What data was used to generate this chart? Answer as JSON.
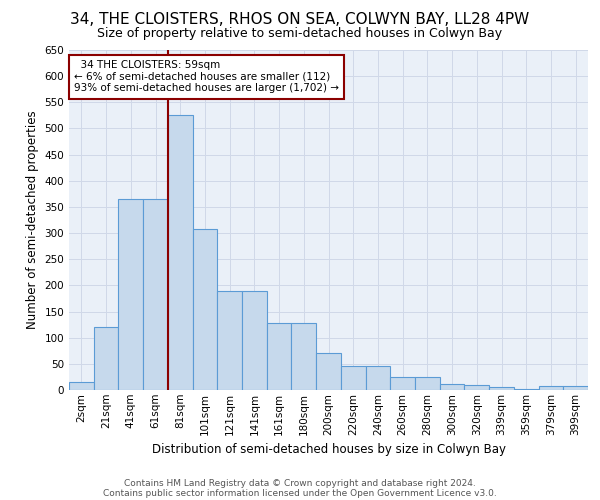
{
  "title": "34, THE CLOISTERS, RHOS ON SEA, COLWYN BAY, LL28 4PW",
  "subtitle": "Size of property relative to semi-detached houses in Colwyn Bay",
  "xlabel": "Distribution of semi-detached houses by size in Colwyn Bay",
  "ylabel": "Number of semi-detached properties",
  "footer_line1": "Contains HM Land Registry data © Crown copyright and database right 2024.",
  "footer_line2": "Contains public sector information licensed under the Open Government Licence v3.0.",
  "annotation_line1": "34 THE CLOISTERS: 59sqm",
  "annotation_line2": "← 6% of semi-detached houses are smaller (112)",
  "annotation_line3": "93% of semi-detached houses are larger (1,702) →",
  "bar_labels": [
    "2sqm",
    "21sqm",
    "41sqm",
    "61sqm",
    "81sqm",
    "101sqm",
    "121sqm",
    "141sqm",
    "161sqm",
    "180sqm",
    "200sqm",
    "220sqm",
    "240sqm",
    "260sqm",
    "280sqm",
    "300sqm",
    "320sqm",
    "339sqm",
    "359sqm",
    "379sqm",
    "399sqm"
  ],
  "bar_values": [
    15,
    120,
    365,
    365,
    525,
    308,
    190,
    190,
    128,
    128,
    70,
    45,
    45,
    25,
    25,
    12,
    10,
    5,
    2,
    8,
    8
  ],
  "bar_color": "#c6d9ec",
  "bar_edge_color": "#5b9bd5",
  "vline_color": "#8b0000",
  "vline_x": 3.5,
  "grid_color": "#d0d8e8",
  "background_color": "#eaf0f8",
  "ylim": [
    0,
    650
  ],
  "yticks": [
    0,
    50,
    100,
    150,
    200,
    250,
    300,
    350,
    400,
    450,
    500,
    550,
    600,
    650
  ],
  "annotation_box_color": "#8b0000",
  "title_fontsize": 11,
  "subtitle_fontsize": 9,
  "axis_label_fontsize": 8.5,
  "tick_fontsize": 7.5,
  "footer_fontsize": 6.5
}
